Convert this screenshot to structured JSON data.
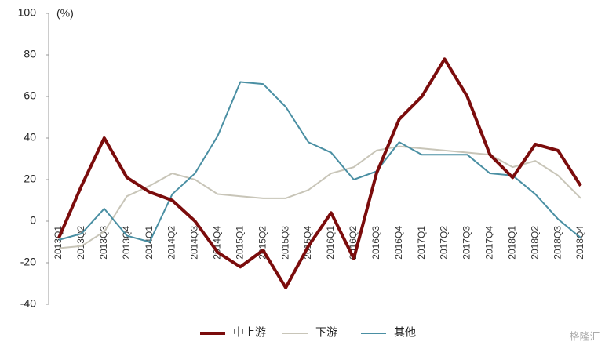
{
  "chart_data": {
    "type": "line",
    "unit_label": "(%)",
    "categories": [
      "2013Q1",
      "2013Q2",
      "2013Q3",
      "2013Q4",
      "2014Q1",
      "2014Q2",
      "2014Q3",
      "2014Q4",
      "2015Q1",
      "2015Q2",
      "2015Q3",
      "2015Q4",
      "2016Q1",
      "2016Q2",
      "2016Q3",
      "2016Q4",
      "2017Q1",
      "2017Q2",
      "2017Q3",
      "2017Q4",
      "2018Q1",
      "2018Q2",
      "2018Q3",
      "2018Q4"
    ],
    "series": [
      {
        "name": "中上游",
        "color": "#7b0c0c",
        "width": 4,
        "values": [
          -8,
          17,
          40,
          21,
          14,
          10,
          0,
          -15,
          -22,
          -14,
          -32,
          -12,
          4,
          -18,
          23,
          49,
          60,
          78,
          60,
          32,
          21,
          37,
          34,
          17
        ]
      },
      {
        "name": "下游",
        "color": "#c8c5b8",
        "width": 2,
        "values": [
          -13,
          -12,
          -5,
          12,
          17,
          23,
          20,
          13,
          12,
          11,
          11,
          15,
          23,
          26,
          34,
          36,
          35,
          34,
          33,
          32,
          26,
          29,
          22,
          11
        ]
      },
      {
        "name": "其他",
        "color": "#4a8fa3",
        "width": 2,
        "values": [
          -9,
          -6,
          6,
          -7,
          -10,
          13,
          23,
          41,
          67,
          66,
          55,
          38,
          33,
          20,
          24,
          38,
          32,
          32,
          32,
          23,
          22,
          13,
          1,
          -8
        ]
      }
    ],
    "ylim": [
      -40,
      100
    ],
    "yticks": [
      -40,
      -20,
      0,
      20,
      40,
      60,
      80,
      100
    ],
    "legend": "bottom",
    "watermark": "格隆汇"
  }
}
